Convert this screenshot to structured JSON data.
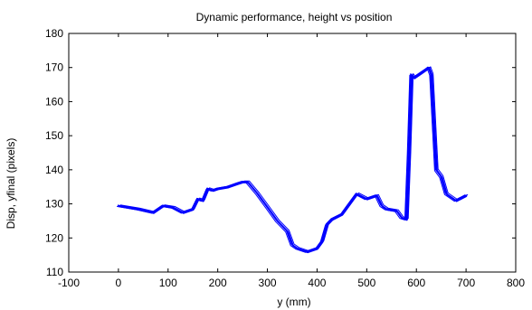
{
  "chart_data": {
    "type": "line",
    "title": "Dynamic performance, height vs position",
    "xlabel": "y (mm)",
    "ylabel": "Disp, yfinal (pixels)",
    "xlim": [
      -100,
      800
    ],
    "ylim": [
      110,
      180
    ],
    "xticks": [
      -100,
      0,
      100,
      200,
      300,
      400,
      500,
      600,
      700,
      800
    ],
    "yticks": [
      110,
      120,
      130,
      140,
      150,
      160,
      170,
      180
    ],
    "grid": false,
    "line_color": "#0000ff",
    "series": [
      {
        "x": [
          0,
          40,
          70,
          90,
          110,
          130,
          150,
          160,
          170,
          180,
          190,
          200,
          220,
          240,
          250,
          260,
          280,
          300,
          320,
          340,
          350,
          360,
          380,
          400,
          410,
          420,
          430,
          450,
          470,
          480,
          500,
          520,
          530,
          540,
          560,
          570,
          580,
          585,
          590,
          595,
          610,
          620,
          625,
          630,
          640,
          650,
          660,
          680,
          700
        ],
        "y": [
          129.5,
          128.5,
          127.5,
          129.5,
          129.0,
          127.5,
          128.5,
          131.5,
          131.0,
          134.5,
          134.0,
          134.5,
          135.0,
          136.0,
          136.5,
          136.5,
          133.0,
          129.0,
          125.0,
          122.0,
          118.0,
          117.0,
          116.0,
          117.0,
          119.0,
          124.0,
          125.5,
          127.0,
          131.0,
          133.0,
          131.5,
          132.5,
          129.5,
          128.5,
          128.0,
          126.0,
          125.5,
          145.0,
          168.0,
          167.0,
          168.5,
          169.5,
          170.0,
          168.0,
          140.0,
          138.0,
          133.0,
          131.0,
          132.5
        ]
      }
    ]
  }
}
